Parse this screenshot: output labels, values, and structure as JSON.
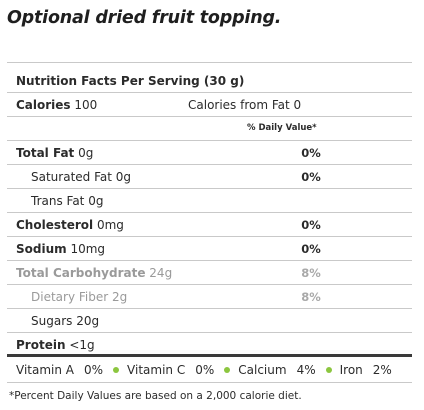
{
  "heading": "Optional dried fruit topping.",
  "nutrition": {
    "title": "Nutrition Facts Per Serving (30 g)",
    "calories_label": "Calories",
    "calories_value": "100",
    "calories_fat": "Calories from Fat 0",
    "dv_header": "% Daily Value*",
    "rows": [
      {
        "label": "Total Fat",
        "amount": "0g",
        "dv": "0%"
      },
      {
        "label": "Saturated Fat",
        "amount": "0g",
        "dv": "0%"
      },
      {
        "label": "Trans Fat",
        "amount": "0g",
        "dv": ""
      },
      {
        "label": "Cholesterol",
        "amount": "0mg",
        "dv": "0%"
      },
      {
        "label": "Sodium",
        "amount": "10mg",
        "dv": "0%"
      },
      {
        "label": "Total Carbohydrate",
        "amount": "24g",
        "dv": "8%"
      },
      {
        "label": "Dietary Fiber",
        "amount": "2g",
        "dv": "8%"
      },
      {
        "label": "Sugars",
        "amount": "20g",
        "dv": ""
      },
      {
        "label": "Protein",
        "amount": "<1g",
        "dv": ""
      }
    ],
    "vitamins": [
      {
        "name": "Vitamin A",
        "value": "0%"
      },
      {
        "name": "Vitamin C",
        "value": "0%"
      },
      {
        "name": "Calcium",
        "value": "4%"
      },
      {
        "name": "Iron",
        "value": "2%"
      }
    ],
    "footnote": "*Percent Daily Values are based on a 2,000 calorie diet."
  },
  "colors": {
    "bullet": "#8cc63f",
    "rule": "#c9c9c9",
    "thick_rule": "#3a3a3a"
  }
}
